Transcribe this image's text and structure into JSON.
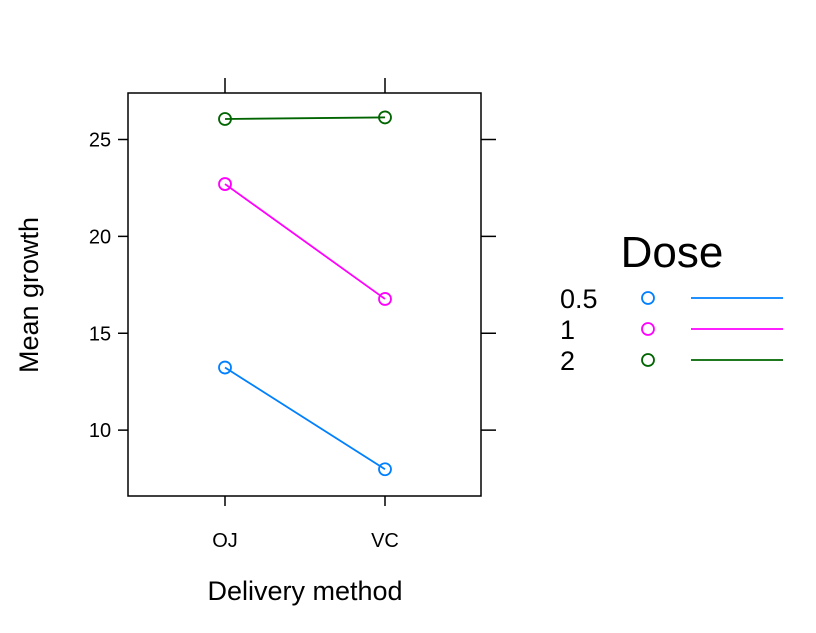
{
  "chart_data": {
    "type": "line",
    "title": "",
    "xlabel": "Delivery method",
    "ylabel": "Mean growth",
    "categories": [
      "OJ",
      "VC"
    ],
    "yticks": [
      10,
      15,
      20,
      25
    ],
    "ylim": [
      6.6,
      27.4
    ],
    "grid": false,
    "legend": {
      "title": "Dose",
      "placement": "right"
    },
    "series": [
      {
        "name": "0.5",
        "values": [
          13.23,
          7.98
        ],
        "color": "#0080ff",
        "marker": "open-circle"
      },
      {
        "name": "1",
        "values": [
          22.7,
          16.77
        ],
        "color": "#ff00ff",
        "marker": "open-circle"
      },
      {
        "name": "2",
        "values": [
          26.06,
          26.14
        ],
        "color": "#006400",
        "marker": "open-circle"
      }
    ]
  }
}
